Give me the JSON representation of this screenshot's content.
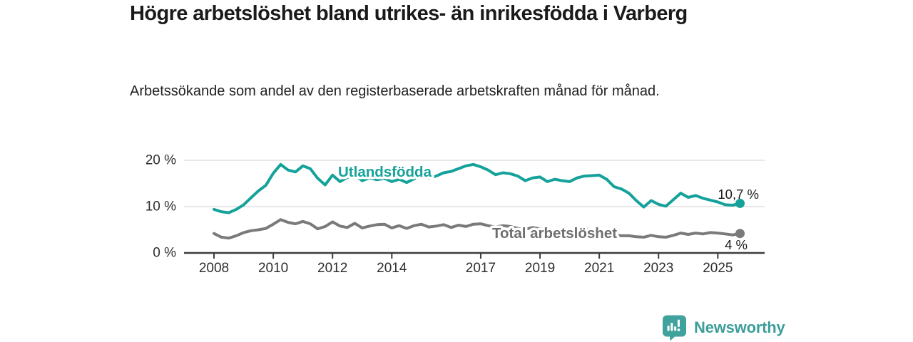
{
  "header": {
    "title": "Högre arbetslöshet bland utrikes- än inrikesfödda i Varberg",
    "subtitle": "Arbetssökande som andel av den registerbaserade arbetskraften månad för månad."
  },
  "colors": {
    "accent_teal": "#14a29a",
    "line_gray": "#7a7a7a",
    "label_gray": "#6e6e6e",
    "text_dark": "#1a1a1a",
    "axis_text": "#2e2e2e",
    "gridline": "#dadada",
    "axis_line": "#3d3d3d",
    "brand_teal": "#3d9e99"
  },
  "chart_data": {
    "type": "line",
    "title": "Högre arbetslöshet bland utrikes- än inrikesfödda i Varberg",
    "subtitle": "Arbetssökande som andel av den registerbaserade arbetskraften månad för månad.",
    "x_unit": "year",
    "x_start": 2008,
    "x_step": 0.25,
    "x_end": 2025.75,
    "x_ticks": [
      2008,
      2010,
      2012,
      2014,
      2017,
      2019,
      2021,
      2023,
      2025
    ],
    "y_ticks": [
      {
        "value": 0,
        "label": "0 %"
      },
      {
        "value": 10,
        "label": "10 %"
      },
      {
        "value": 20,
        "label": "20 %"
      }
    ],
    "ylim": [
      0,
      21.5
    ],
    "grid": "horizontal",
    "legend_position": "inline-labels",
    "series": [
      {
        "name": "Utlandsfödda",
        "color": "#14a29a",
        "end_label": "10,7 %",
        "end_value": 10.7,
        "values": [
          9.4,
          8.9,
          8.7,
          9.4,
          10.4,
          11.9,
          13.4,
          14.6,
          17.2,
          19.1,
          17.9,
          17.5,
          18.8,
          18.2,
          16.1,
          14.7,
          16.8,
          15.4,
          16.3,
          16.9,
          15.6,
          16.2,
          15.8,
          16.1,
          15.4,
          15.9,
          15.2,
          16.0,
          16.9,
          16.2,
          16.6,
          17.3,
          17.6,
          18.2,
          18.8,
          19.1,
          18.6,
          17.9,
          16.9,
          17.3,
          17.1,
          16.6,
          15.6,
          16.2,
          16.4,
          15.4,
          15.9,
          15.6,
          15.4,
          16.2,
          16.6,
          16.7,
          16.8,
          15.9,
          14.3,
          13.8,
          12.9,
          11.3,
          9.9,
          11.3,
          10.5,
          10.1,
          11.5,
          12.9,
          12.0,
          12.4,
          11.8,
          11.4,
          11.0,
          10.4,
          10.3,
          10.7
        ]
      },
      {
        "name": "Total arbetslöshet",
        "color": "#7a7a7a",
        "end_label": "4 %",
        "end_value": 4.2,
        "values": [
          4.2,
          3.4,
          3.2,
          3.7,
          4.4,
          4.8,
          5.0,
          5.3,
          6.2,
          7.2,
          6.6,
          6.3,
          6.8,
          6.3,
          5.2,
          5.7,
          6.7,
          5.8,
          5.5,
          6.4,
          5.4,
          5.8,
          6.1,
          6.2,
          5.4,
          5.9,
          5.3,
          5.9,
          6.2,
          5.6,
          5.8,
          6.1,
          5.5,
          6.0,
          5.7,
          6.2,
          6.3,
          5.9,
          5.6,
          5.9,
          5.7,
          5.3,
          5.1,
          5.5,
          5.2,
          4.9,
          4.8,
          5.1,
          4.9,
          5.3,
          5.2,
          5.0,
          4.7,
          4.3,
          3.9,
          3.7,
          3.7,
          3.5,
          3.4,
          3.8,
          3.5,
          3.4,
          3.8,
          4.3,
          4.0,
          4.3,
          4.1,
          4.4,
          4.3,
          4.1,
          3.9,
          4.2
        ]
      }
    ]
  },
  "footer": {
    "brand": "Newsworthy"
  }
}
